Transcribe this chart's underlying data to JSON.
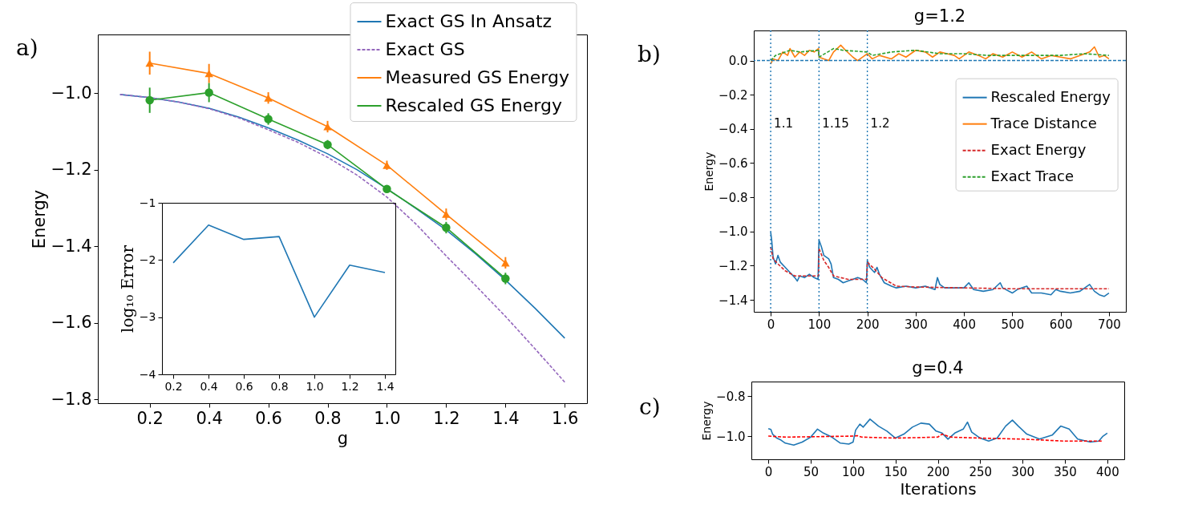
{
  "chart_data": [
    {
      "type": "line",
      "xlabel": "g",
      "ylabel": "Energy",
      "annotations": [
        "a)"
      ],
      "legend": "top right",
      "xlim": [
        0.025,
        1.675
      ],
      "ylim": [
        -1.81,
        -0.846
      ],
      "xticks": [
        0.2,
        0.4,
        0.6,
        0.8,
        {
          "value": 1,
          "label": "1.0"
        },
        1.2,
        1.4,
        1.6
      ],
      "yticks": [
        {
          "value": -1,
          "label": "−1.0"
        },
        {
          "value": -1.2,
          "label": "−1.2"
        },
        {
          "value": -1.4,
          "label": "−1.4"
        },
        {
          "value": -1.6,
          "label": "−1.6"
        },
        {
          "value": -1.8,
          "label": "−1.8"
        }
      ],
      "series": [
        {
          "name": "Exact GS In Ansatz",
          "color": "#1f77b4",
          "x": [
            0.1,
            0.2,
            0.3,
            0.4,
            0.5,
            0.6,
            0.7,
            0.8,
            0.9,
            1.0,
            1.1,
            1.2,
            1.3,
            1.4,
            1.5,
            1.6
          ],
          "values": [
            -1.003,
            -1.011,
            -1.023,
            -1.039,
            -1.062,
            -1.09,
            -1.122,
            -1.158,
            -1.2,
            -1.249,
            -1.302,
            -1.357,
            -1.42,
            -1.488,
            -1.562,
            -1.64
          ]
        },
        {
          "name": "Exact GS",
          "color": "#9467bd",
          "line_style": "dashed",
          "x": [
            0.1,
            0.2,
            0.3,
            0.4,
            0.5,
            0.6,
            0.7,
            0.8,
            0.9,
            1.0,
            1.1,
            1.2,
            1.3,
            1.4,
            1.5,
            1.6
          ],
          "values": [
            -1.003,
            -1.011,
            -1.023,
            -1.04,
            -1.064,
            -1.095,
            -1.128,
            -1.167,
            -1.214,
            -1.271,
            -1.343,
            -1.425,
            -1.503,
            -1.583,
            -1.668,
            -1.755
          ]
        },
        {
          "name": "Measured GS Energy",
          "color": "#ff7f0e",
          "marker": "triangle",
          "x": [
            0.2,
            0.4,
            0.6,
            0.8,
            1.0,
            1.2,
            1.4
          ],
          "values": [
            -0.921,
            -0.948,
            -1.012,
            -1.087,
            -1.188,
            -1.316,
            -1.443
          ],
          "errors": [
            0.03,
            0.025,
            0.015,
            0.015,
            0.012,
            0.015,
            0.015
          ]
        },
        {
          "name": "Rescaled GS Energy",
          "color": "#2ca02c",
          "marker": "circle",
          "x": [
            0.2,
            0.4,
            0.6,
            0.8,
            1.0,
            1.2,
            1.4
          ],
          "values": [
            -1.018,
            -0.998,
            -1.067,
            -1.134,
            -1.25,
            -1.351,
            -1.484
          ],
          "errors": [
            0.033,
            0.025,
            0.015,
            0.012,
            0.01,
            0.015,
            0.015
          ]
        }
      ]
    },
    {
      "type": "line",
      "ylabel": "log₁₀ Error",
      "xlim": [
        0.136,
        1.459
      ],
      "ylim": [
        -4,
        -1
      ],
      "xticks": [
        0.2,
        0.4,
        0.6,
        0.8,
        {
          "value": 1,
          "label": "1.0"
        },
        1.2,
        1.4
      ],
      "yticks": [
        {
          "value": -1,
          "label": "−1"
        },
        {
          "value": -2,
          "label": "−2"
        },
        {
          "value": -3,
          "label": "−3"
        },
        {
          "value": -4,
          "label": "−4"
        }
      ],
      "series": [
        {
          "color": "#1f77b4",
          "x": [
            0.2,
            0.4,
            0.6,
            0.8,
            1.0,
            1.2,
            1.4
          ],
          "values": [
            -2.05,
            -1.39,
            -1.64,
            -1.59,
            -3.0,
            -2.09,
            -2.22
          ]
        }
      ]
    },
    {
      "type": "line",
      "title": "g=1.2",
      "ylabel": "Energy",
      "annotations": [
        "b)",
        {
          "text": "1.1",
          "x": 0,
          "y": -0.37
        },
        {
          "text": "1.15",
          "x": 100,
          "y": -0.37
        },
        {
          "text": "1.2",
          "x": 200,
          "y": -0.37
        }
      ],
      "legend": "right",
      "xlim": [
        -35,
        735
      ],
      "ylim": [
        -1.47,
        0.176
      ],
      "xticks": [
        0,
        100,
        200,
        300,
        400,
        500,
        600,
        700
      ],
      "yticks": [
        {
          "value": 0,
          "label": "0.0"
        },
        {
          "value": -0.2,
          "label": "−0.2"
        },
        {
          "value": -0.4,
          "label": "−0.4"
        },
        {
          "value": -0.6,
          "label": "−0.6"
        },
        {
          "value": -0.8,
          "label": "−0.8"
        },
        {
          "value": -1,
          "label": "−1.0"
        },
        {
          "value": -1.2,
          "label": "−1.2"
        },
        {
          "value": -1.4,
          "label": "−1.4"
        }
      ],
      "ref_lines": [
        {
          "axis": "y",
          "value": 0,
          "color": "#1f77b4",
          "line_style": "dashed"
        },
        {
          "axis": "x",
          "value": 0,
          "color": "#1f77b4",
          "line_style": "dotted"
        },
        {
          "axis": "x",
          "value": 100,
          "color": "#1f77b4",
          "line_style": "dotted"
        },
        {
          "axis": "x",
          "value": 200,
          "color": "#1f77b4",
          "line_style": "dotted"
        }
      ],
      "series": [
        {
          "name": "Rescaled Energy",
          "color": "#1f77b4",
          "x": [
            0,
            2,
            5,
            10,
            15,
            20,
            30,
            40,
            50,
            55,
            60,
            70,
            80,
            90,
            98,
            100,
            105,
            110,
            120,
            125,
            130,
            140,
            150,
            160,
            170,
            180,
            190,
            198,
            200,
            205,
            215,
            220,
            225,
            235,
            250,
            260,
            280,
            300,
            320,
            340,
            345,
            350,
            360,
            380,
            400,
            410,
            420,
            440,
            460,
            475,
            480,
            500,
            510,
            530,
            540,
            560,
            580,
            590,
            600,
            620,
            640,
            660,
            670,
            680,
            690,
            700
          ],
          "values": [
            -1.004,
            -1.05,
            -1.15,
            -1.19,
            -1.14,
            -1.18,
            -1.21,
            -1.24,
            -1.27,
            -1.29,
            -1.26,
            -1.27,
            -1.25,
            -1.27,
            -1.28,
            -1.05,
            -1.09,
            -1.14,
            -1.16,
            -1.19,
            -1.27,
            -1.28,
            -1.3,
            -1.29,
            -1.28,
            -1.27,
            -1.28,
            -1.3,
            -1.17,
            -1.21,
            -1.24,
            -1.21,
            -1.25,
            -1.3,
            -1.32,
            -1.33,
            -1.32,
            -1.33,
            -1.32,
            -1.34,
            -1.27,
            -1.31,
            -1.33,
            -1.33,
            -1.33,
            -1.3,
            -1.34,
            -1.35,
            -1.34,
            -1.3,
            -1.33,
            -1.36,
            -1.34,
            -1.32,
            -1.36,
            -1.36,
            -1.37,
            -1.34,
            -1.35,
            -1.36,
            -1.35,
            -1.31,
            -1.35,
            -1.37,
            -1.38,
            -1.36
          ]
        },
        {
          "name": "Trace Distance",
          "color": "#ff7f0e",
          "x": [
            0,
            5,
            15,
            25,
            35,
            40,
            50,
            60,
            70,
            80,
            90,
            99,
            100,
            110,
            120,
            130,
            145,
            155,
            170,
            180,
            195,
            200,
            210,
            225,
            250,
            265,
            280,
            300,
            320,
            335,
            350,
            365,
            380,
            390,
            410,
            430,
            445,
            460,
            480,
            500,
            520,
            540,
            560,
            580,
            600,
            620,
            640,
            660,
            670,
            680,
            690,
            700
          ],
          "values": [
            -0.02,
            0.01,
            0.0,
            0.05,
            0.03,
            0.07,
            0.02,
            0.05,
            0.03,
            0.06,
            0.05,
            0.07,
            0.02,
            0.01,
            0.0,
            0.05,
            0.09,
            0.06,
            0.02,
            0.0,
            0.03,
            0.04,
            0.01,
            0.03,
            0.01,
            0.04,
            0.02,
            0.06,
            0.05,
            0.02,
            0.05,
            0.04,
            0.03,
            0.01,
            0.05,
            0.03,
            0.01,
            0.04,
            0.02,
            0.05,
            0.02,
            0.05,
            0.01,
            0.03,
            0.02,
            0.01,
            0.03,
            0.05,
            0.08,
            0.02,
            0.03,
            0.01
          ]
        },
        {
          "name": "Exact Energy",
          "color": "#d62728",
          "line_style": "dashed",
          "x": [
            0,
            5,
            15,
            30,
            50,
            99,
            100,
            110,
            120,
            130,
            160,
            199,
            200,
            215,
            230,
            260,
            300,
            400,
            500,
            600,
            700
          ],
          "values": [
            -1.09,
            -1.16,
            -1.19,
            -1.23,
            -1.26,
            -1.26,
            -1.1,
            -1.17,
            -1.21,
            -1.26,
            -1.28,
            -1.28,
            -1.18,
            -1.22,
            -1.27,
            -1.32,
            -1.325,
            -1.33,
            -1.335,
            -1.335,
            -1.335
          ]
        },
        {
          "name": "Exact Trace",
          "color": "#2ca02c",
          "line_style": "dashed",
          "x": [
            0,
            10,
            40,
            60,
            99,
            100,
            130,
            150,
            200,
            210,
            250,
            300,
            350,
            400,
            450,
            500,
            550,
            600,
            650,
            700
          ],
          "values": [
            0.0,
            0.03,
            0.06,
            0.05,
            0.06,
            0.02,
            0.07,
            0.06,
            0.05,
            0.03,
            0.05,
            0.06,
            0.04,
            0.04,
            0.03,
            0.03,
            0.03,
            0.03,
            0.04,
            0.03
          ]
        }
      ]
    },
    {
      "type": "line",
      "title": "g=0.4",
      "xlabel": "Iterations",
      "ylabel": "Energy",
      "annotations": [
        "c)"
      ],
      "xlim": [
        -20,
        420
      ],
      "ylim": [
        -1.116,
        -0.727
      ],
      "xticks": [
        0,
        50,
        100,
        150,
        200,
        250,
        300,
        350,
        400
      ],
      "yticks": [
        {
          "value": -0.8,
          "label": "−0.8"
        },
        {
          "value": -1,
          "label": "−1.0"
        }
      ],
      "series": [
        {
          "color": "#1f77b4",
          "x": [
            0,
            3,
            5,
            10,
            15,
            20,
            30,
            40,
            50,
            58,
            65,
            75,
            85,
            95,
            100,
            103,
            108,
            112,
            120,
            130,
            140,
            150,
            160,
            170,
            180,
            190,
            198,
            205,
            212,
            220,
            230,
            235,
            240,
            250,
            260,
            270,
            280,
            288,
            295,
            305,
            320,
            335,
            345,
            355,
            365,
            380,
            390,
            395,
            400
          ],
          "values": [
            -0.963,
            -0.967,
            -0.99,
            -1.01,
            -1.02,
            -1.035,
            -1.045,
            -1.03,
            -1.005,
            -0.965,
            -0.985,
            -1.005,
            -1.035,
            -1.04,
            -1.03,
            -0.97,
            -0.94,
            -0.955,
            -0.915,
            -0.95,
            -0.975,
            -1.01,
            -0.99,
            -0.955,
            -0.935,
            -0.94,
            -0.975,
            -0.985,
            -1.015,
            -0.985,
            -0.965,
            -0.93,
            -0.98,
            -1.01,
            -1.025,
            -1.01,
            -0.95,
            -0.92,
            -0.95,
            -0.99,
            -1.015,
            -0.995,
            -0.95,
            -0.965,
            -1.015,
            -1.03,
            -1.025,
            -1.0,
            -0.985
          ]
        },
        {
          "color": "#ff0000",
          "line_style": "dashed",
          "x": [
            0,
            20,
            100,
            105,
            110,
            150,
            200,
            205,
            215,
            250,
            300,
            350,
            395
          ],
          "values": [
            -1.0,
            -1.005,
            -1.0,
            -0.998,
            -1.005,
            -1.01,
            -1.005,
            -0.99,
            -1.005,
            -1.01,
            -1.015,
            -1.025,
            -1.025
          ]
        }
      ]
    }
  ]
}
